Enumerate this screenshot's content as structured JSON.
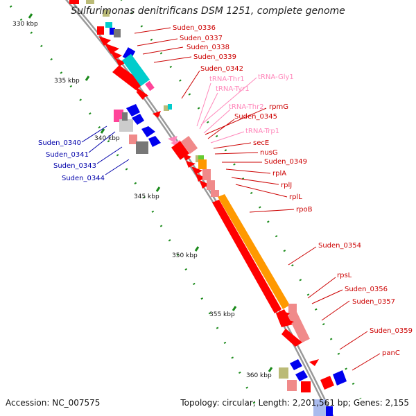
{
  "title": "Sulfurimonas denitrificans DSM 1251, complete genome",
  "accession": "Accession: NC_007575",
  "topology": "Topology: circular; Length: 2,201,561 bp; Genes: 2,155",
  "colors": {
    "backbone": "#888888",
    "gc_dots": "#1a8a1a",
    "label_red": "#cc0000",
    "label_pink": "#ff88bb",
    "label_blue": "#0000aa",
    "cds_red": "#ff0000",
    "cds_orange": "#ff9900",
    "cds_cyan": "#00cccc",
    "cds_blue": "#0000ee",
    "cds_pink": "#ff4499",
    "cds_salmon": "#f08a8a",
    "cds_olive": "#bbbb77",
    "cds_grey": "#777777"
  },
  "scale_labels": [
    "330 kbp",
    "335 kbp",
    "340 kbp",
    "345 kbp",
    "350 kbp",
    "355 kbp",
    "360 kbp"
  ],
  "gene_labels": {
    "red": [
      "Suden_0336",
      "Suden_0337",
      "Suden_0338",
      "Suden_0339",
      "Suden_0342",
      "rpmG",
      "Suden_0345",
      "secE",
      "nusG",
      "Suden_0349",
      "rplA",
      "rplJ",
      "rplL",
      "rpoB",
      "Suden_0354",
      "rpsL",
      "Suden_0356",
      "Suden_0357",
      "Suden_0359",
      "panC"
    ],
    "pink": [
      "tRNA-Gly1",
      "tRNA-Thr1",
      "tRNA-Tyr1",
      "tRNA-Thr2",
      "tRNA-Trp1"
    ],
    "blue": [
      "Suden_0340",
      "Suden_0341",
      "Suden_0343",
      "Suden_0344"
    ]
  }
}
